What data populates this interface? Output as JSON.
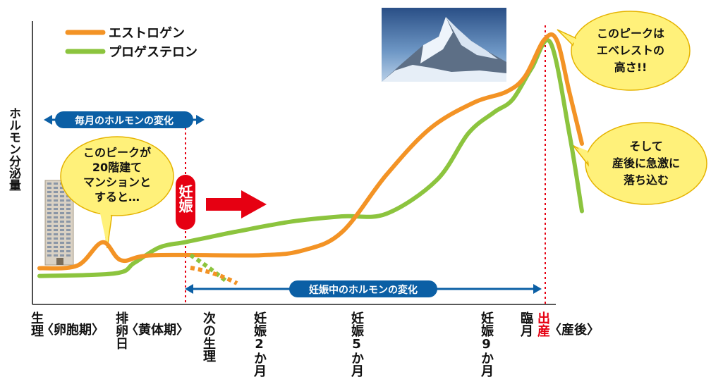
{
  "chart_data": {
    "type": "line",
    "title": "",
    "ylabel": "ホルモン分泌量",
    "xlabel": "",
    "legend_position": "top-left",
    "colors": {
      "estrogen": "#f39325",
      "progesterone": "#8cc43e",
      "accent_red": "#e60012",
      "arrow_blue": "#0b5fa5",
      "bubble": "#fff17a"
    },
    "x_labels": [
      {
        "id": "period",
        "text": "生理"
      },
      {
        "id": "follicular",
        "text": "〈卵胞期〉"
      },
      {
        "id": "ovulation",
        "text": "排卵日"
      },
      {
        "id": "luteal",
        "text": "〈黄体期〉"
      },
      {
        "id": "next_period",
        "text": "次の生理"
      },
      {
        "id": "preg2",
        "text": "妊娠2か月"
      },
      {
        "id": "preg5",
        "text": "妊娠5か月"
      },
      {
        "id": "preg9",
        "text": "妊娠9か月"
      },
      {
        "id": "term",
        "text": "臨月"
      },
      {
        "id": "birth",
        "text": "出産"
      },
      {
        "id": "postpartum",
        "text": "〈産後〉"
      }
    ],
    "series": [
      {
        "name": "エストロゲン",
        "color": "#f39325",
        "points": [
          [
            0,
            8
          ],
          [
            6,
            9
          ],
          [
            10,
            18
          ],
          [
            13,
            11
          ],
          [
            18,
            13
          ],
          [
            35,
            13
          ],
          [
            42,
            15
          ],
          [
            48,
            22
          ],
          [
            55,
            44
          ],
          [
            62,
            62
          ],
          [
            69,
            72
          ],
          [
            74,
            76
          ],
          [
            77,
            82
          ],
          [
            80,
            96
          ],
          [
            82,
            96
          ],
          [
            84,
            76
          ],
          [
            86,
            56
          ]
        ]
      },
      {
        "name": "プロゲステロン",
        "color": "#8cc43e",
        "points": [
          [
            0,
            5
          ],
          [
            12,
            6
          ],
          [
            15,
            10
          ],
          [
            19,
            16
          ],
          [
            23,
            18
          ],
          [
            27,
            20
          ],
          [
            31,
            22
          ],
          [
            40,
            26
          ],
          [
            48,
            28
          ],
          [
            55,
            29
          ],
          [
            63,
            42
          ],
          [
            68,
            60
          ],
          [
            72,
            68
          ],
          [
            75,
            73
          ],
          [
            78,
            85
          ],
          [
            81,
            95
          ],
          [
            84,
            60
          ],
          [
            86,
            30
          ]
        ]
      }
    ]
  },
  "legend": {
    "estrogen_label": "エストロゲン",
    "progesterone_label": "プロゲステロン"
  },
  "annotations": {
    "monthly_change": "毎月のホルモンの変化",
    "pregnancy_change": "妊娠中のホルモンの変化",
    "pregnancy_marker": "妊娠",
    "bubble_mansion_lines": [
      "このピークが",
      "20階建て",
      "マンションと",
      "すると…"
    ],
    "bubble_everest_lines": [
      "このピークは",
      "エベレストの",
      "高さ!!"
    ],
    "bubble_drop_lines": [
      "そして",
      "産後に急激に",
      "落ち込む"
    ]
  }
}
